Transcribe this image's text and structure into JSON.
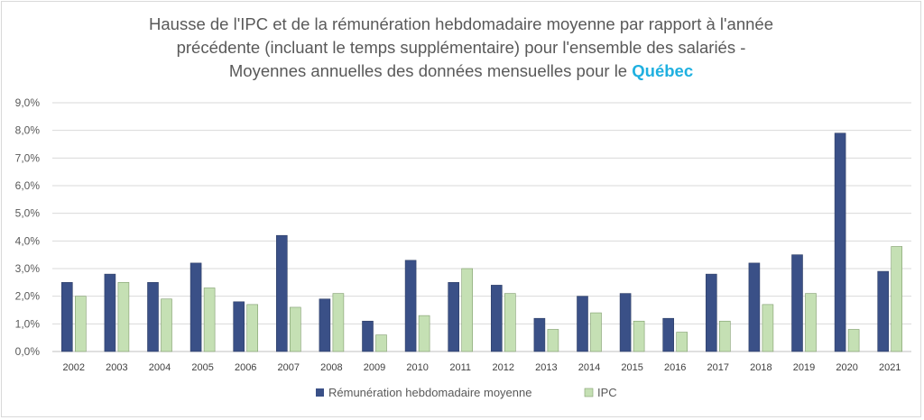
{
  "title": {
    "line1": "Hausse  de l'IPC et de la rémunération hebdomadaire moyenne par rapport à l'année",
    "line2": "précédente (incluant le temps supplémentaire) pour l'ensemble des salariés -",
    "line3_prefix": "Moyennes annuelles des données mensuelles pour le",
    "line3_highlight": "Québec"
  },
  "colors": {
    "series1": "#44546a",
    "series1_fill": "#3a5087",
    "series2_fill": "#c5e0b4",
    "series2_stroke": "#7f9c6c",
    "title_highlight": "#1fb0e0"
  },
  "chart_data": {
    "type": "bar",
    "title": "Hausse  de l'IPC et de la rémunération hebdomadaire moyenne par rapport à l'année précédente (incluant le temps supplémentaire) pour l'ensemble des salariés - Moyennes annuelles des données mensuelles pour le Québec",
    "xlabel": "",
    "ylabel": "",
    "categories": [
      "2002",
      "2003",
      "2004",
      "2005",
      "2006",
      "2007",
      "2008",
      "2009",
      "2010",
      "2011",
      "2012",
      "2013",
      "2014",
      "2015",
      "2016",
      "2017",
      "2018",
      "2019",
      "2020",
      "2021"
    ],
    "series": [
      {
        "name": "Rémunération hebdomadaire moyenne",
        "values": [
          2.5,
          2.8,
          2.5,
          3.2,
          1.8,
          4.2,
          1.9,
          1.1,
          3.3,
          2.5,
          2.4,
          1.2,
          2.0,
          2.1,
          1.2,
          2.8,
          3.2,
          3.5,
          7.9,
          2.9
        ]
      },
      {
        "name": "IPC",
        "values": [
          2.0,
          2.5,
          1.9,
          2.3,
          1.7,
          1.6,
          2.1,
          0.6,
          1.3,
          3.0,
          2.1,
          0.8,
          1.4,
          1.1,
          0.7,
          1.1,
          1.7,
          2.1,
          0.8,
          3.8
        ]
      }
    ],
    "ylim": [
      0,
      9
    ],
    "yticks": [
      "0,0%",
      "1,0%",
      "2,0%",
      "3,0%",
      "4,0%",
      "5,0%",
      "6,0%",
      "7,0%",
      "8,0%",
      "9,0%"
    ],
    "grid": true,
    "legend_position": "bottom"
  }
}
